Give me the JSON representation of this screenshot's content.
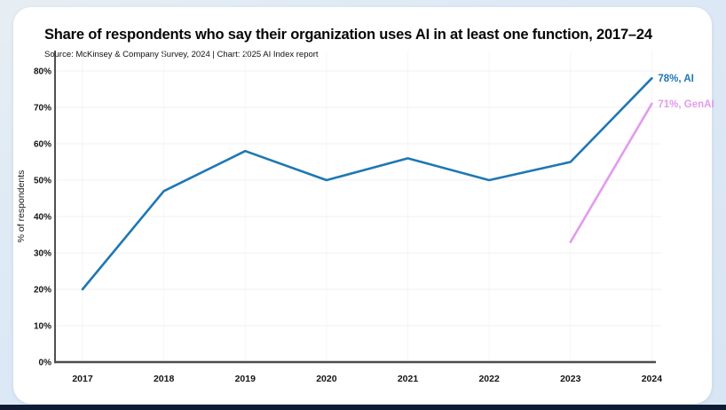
{
  "card": {
    "title": "Share of respondents who say their organization uses AI in at least one function, 2017–24",
    "source": "Source: McKinsey & Company Survey, 2024 | Chart: 2025 AI Index report"
  },
  "chart_data": {
    "type": "line",
    "title": "Share of respondents who say their organization uses AI in at least one function, 2017–24",
    "subtitle": "Source: McKinsey & Company Survey, 2024 | Chart: 2025 AI Index report",
    "x": [
      2017,
      2018,
      2019,
      2020,
      2021,
      2022,
      2023,
      2024
    ],
    "series": [
      {
        "name": "AI",
        "color": "#1f77b4",
        "values": [
          20,
          47,
          58,
          50,
          56,
          50,
          55,
          78
        ],
        "end_label": "78%, AI"
      },
      {
        "name": "GenAI",
        "color": "#e49aef",
        "values": [
          null,
          null,
          null,
          null,
          null,
          null,
          33,
          71
        ],
        "end_label": "71%, GenAI"
      }
    ],
    "xlabel": "",
    "ylabel": "% of respondents",
    "ylim": [
      0,
      80
    ],
    "ytick_step": 10,
    "ytick_suffix": "%",
    "grid": true,
    "legend_position": "line-end-labels"
  },
  "colors": {
    "page_background": "#dde9f5",
    "card_background": "#ffffff",
    "accent_bar": "#0d1b33",
    "axis_y": "#3d3d3d",
    "axis_x": "#4d4d4d",
    "grid_horizontal": "#f0f0f0",
    "grid_vertical": "#f6f6f6",
    "tick_text": "#141414",
    "ai_line": "#1f77b4",
    "genai_line": "#e49aef"
  }
}
